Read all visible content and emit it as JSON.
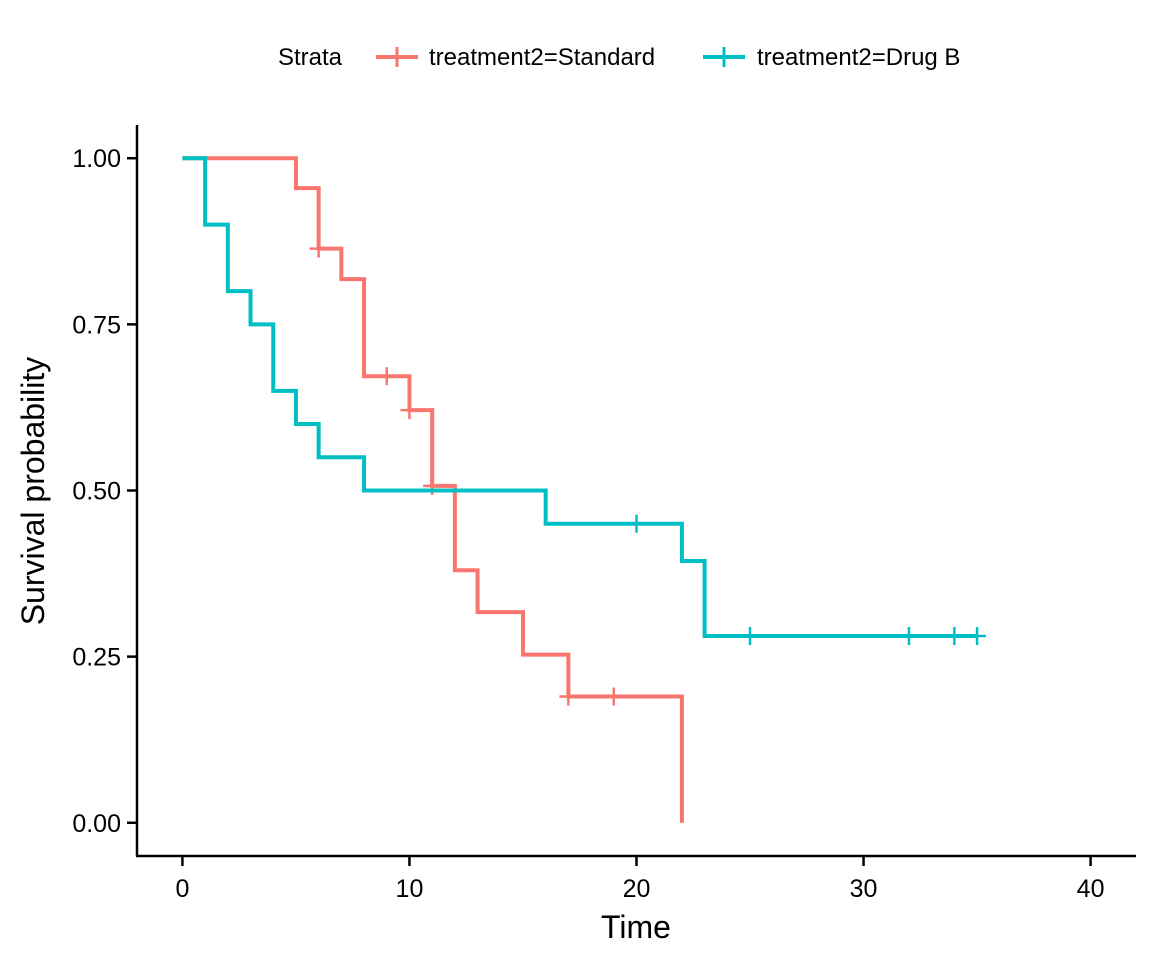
{
  "chart_data": {
    "type": "line",
    "step": true,
    "xlabel": "Time",
    "ylabel": "Survival probability",
    "xlim": [
      -2,
      42
    ],
    "ylim": [
      -0.05,
      1.05
    ],
    "xticks": [
      0,
      10,
      20,
      30,
      40
    ],
    "yticks": [
      0,
      0.25,
      0.5,
      0.75,
      1.0
    ],
    "xtick_labels": [
      "0",
      "10",
      "20",
      "30",
      "40"
    ],
    "ytick_labels": [
      "0.00",
      "0.25",
      "0.50",
      "0.75",
      "1.00"
    ],
    "grid": false,
    "legend": {
      "placement": "top",
      "title": "Strata",
      "entries": [
        "treatment2=Standard",
        "treatment2=Drug B"
      ]
    },
    "series": [
      {
        "name": "treatment2=Standard",
        "color": "#F8766D",
        "steps": [
          [
            0,
            1.0
          ],
          [
            5,
            0.955
          ],
          [
            6,
            0.864
          ],
          [
            7,
            0.818
          ],
          [
            8,
            0.672
          ],
          [
            10,
            0.621
          ],
          [
            11,
            0.507
          ],
          [
            12,
            0.38
          ],
          [
            13,
            0.317
          ],
          [
            15,
            0.253
          ],
          [
            17,
            0.19
          ],
          [
            22,
            0.0
          ]
        ],
        "end_x": 22,
        "censored": [
          [
            6,
            0.864
          ],
          [
            9,
            0.672
          ],
          [
            10,
            0.621
          ],
          [
            11,
            0.507
          ],
          [
            17,
            0.19
          ],
          [
            19,
            0.19
          ]
        ]
      },
      {
        "name": "treatment2=Drug B",
        "color": "#00BFC4",
        "steps": [
          [
            0,
            1.0
          ],
          [
            1,
            0.9
          ],
          [
            2,
            0.8
          ],
          [
            3,
            0.75
          ],
          [
            4,
            0.65
          ],
          [
            5,
            0.6
          ],
          [
            6,
            0.55
          ],
          [
            8,
            0.5
          ],
          [
            16,
            0.45
          ],
          [
            22,
            0.394
          ],
          [
            23,
            0.281
          ]
        ],
        "end_x": 35,
        "censored": [
          [
            20,
            0.45
          ],
          [
            25,
            0.281
          ],
          [
            32,
            0.281
          ],
          [
            34,
            0.281
          ],
          [
            35,
            0.281
          ]
        ]
      }
    ]
  }
}
